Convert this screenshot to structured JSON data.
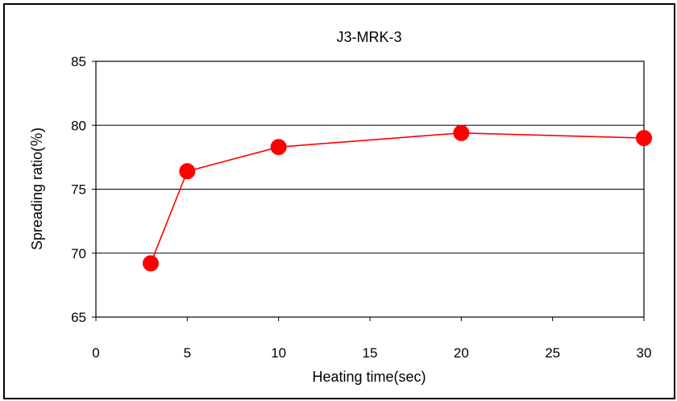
{
  "chart_data": {
    "type": "line",
    "title": "J3-MRK-3",
    "xlabel": "Heating time(sec)",
    "ylabel": "Spreading ratio(％)",
    "xlim": [
      0,
      30
    ],
    "ylim": [
      65,
      85
    ],
    "xticks": [
      0,
      5,
      10,
      15,
      20,
      25,
      30
    ],
    "yticks": [
      65,
      70,
      75,
      80,
      85
    ],
    "grid": "horizontal",
    "legend": "none",
    "series": [
      {
        "x": [
          3,
          5,
          10,
          20,
          30
        ],
        "y": [
          69.2,
          76.4,
          78.3,
          79.4,
          79.0
        ],
        "color": "#ff0000",
        "marker": "circle"
      }
    ]
  }
}
